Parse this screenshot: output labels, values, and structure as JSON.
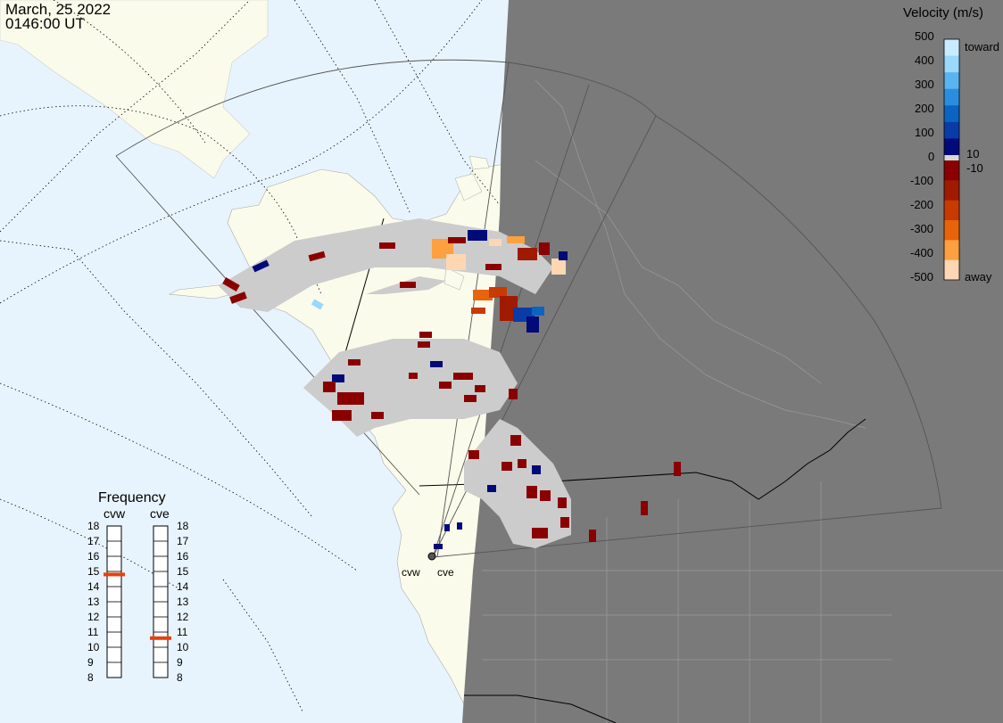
{
  "header": {
    "date": "March, 25 2022",
    "time": "0146:00 UT"
  },
  "colorbar": {
    "title": "Velocity (m/s)",
    "labels_left": [
      "500",
      "400",
      "300",
      "200",
      "100",
      "0",
      "-100",
      "-200",
      "-300",
      "-400",
      "-500"
    ],
    "label_toward": "toward",
    "label_away": "away",
    "label_pos": "10",
    "label_neg": "-10",
    "colors": [
      "#c8ecff",
      "#9ad8fc",
      "#5ab4f0",
      "#2a8ede",
      "#0a64c0",
      "#0a3ca8",
      "#000a78",
      "#8a0000",
      "#a01a00",
      "#c83a00",
      "#e8640a",
      "#fca040",
      "#fdd6b4"
    ]
  },
  "frequency": {
    "title": "Frequency",
    "radars": [
      {
        "name": "cvw",
        "value_mhz": 14.8,
        "min": 8,
        "max": 18
      },
      {
        "name": "cve",
        "value_mhz": 10.6,
        "min": 8,
        "max": 18
      }
    ],
    "scale": [
      "18",
      "17",
      "16",
      "15",
      "14",
      "13",
      "12",
      "11",
      "10",
      "9",
      "8"
    ],
    "indicator_color": "#e8400a"
  },
  "map": {
    "ocean_color": "#e8f4fd",
    "land_day_color": "#fbfbeb",
    "night_color": "#7a7a7a",
    "fov_color": "#cccccc",
    "radar_sites": [
      "cvw",
      "cve"
    ]
  }
}
